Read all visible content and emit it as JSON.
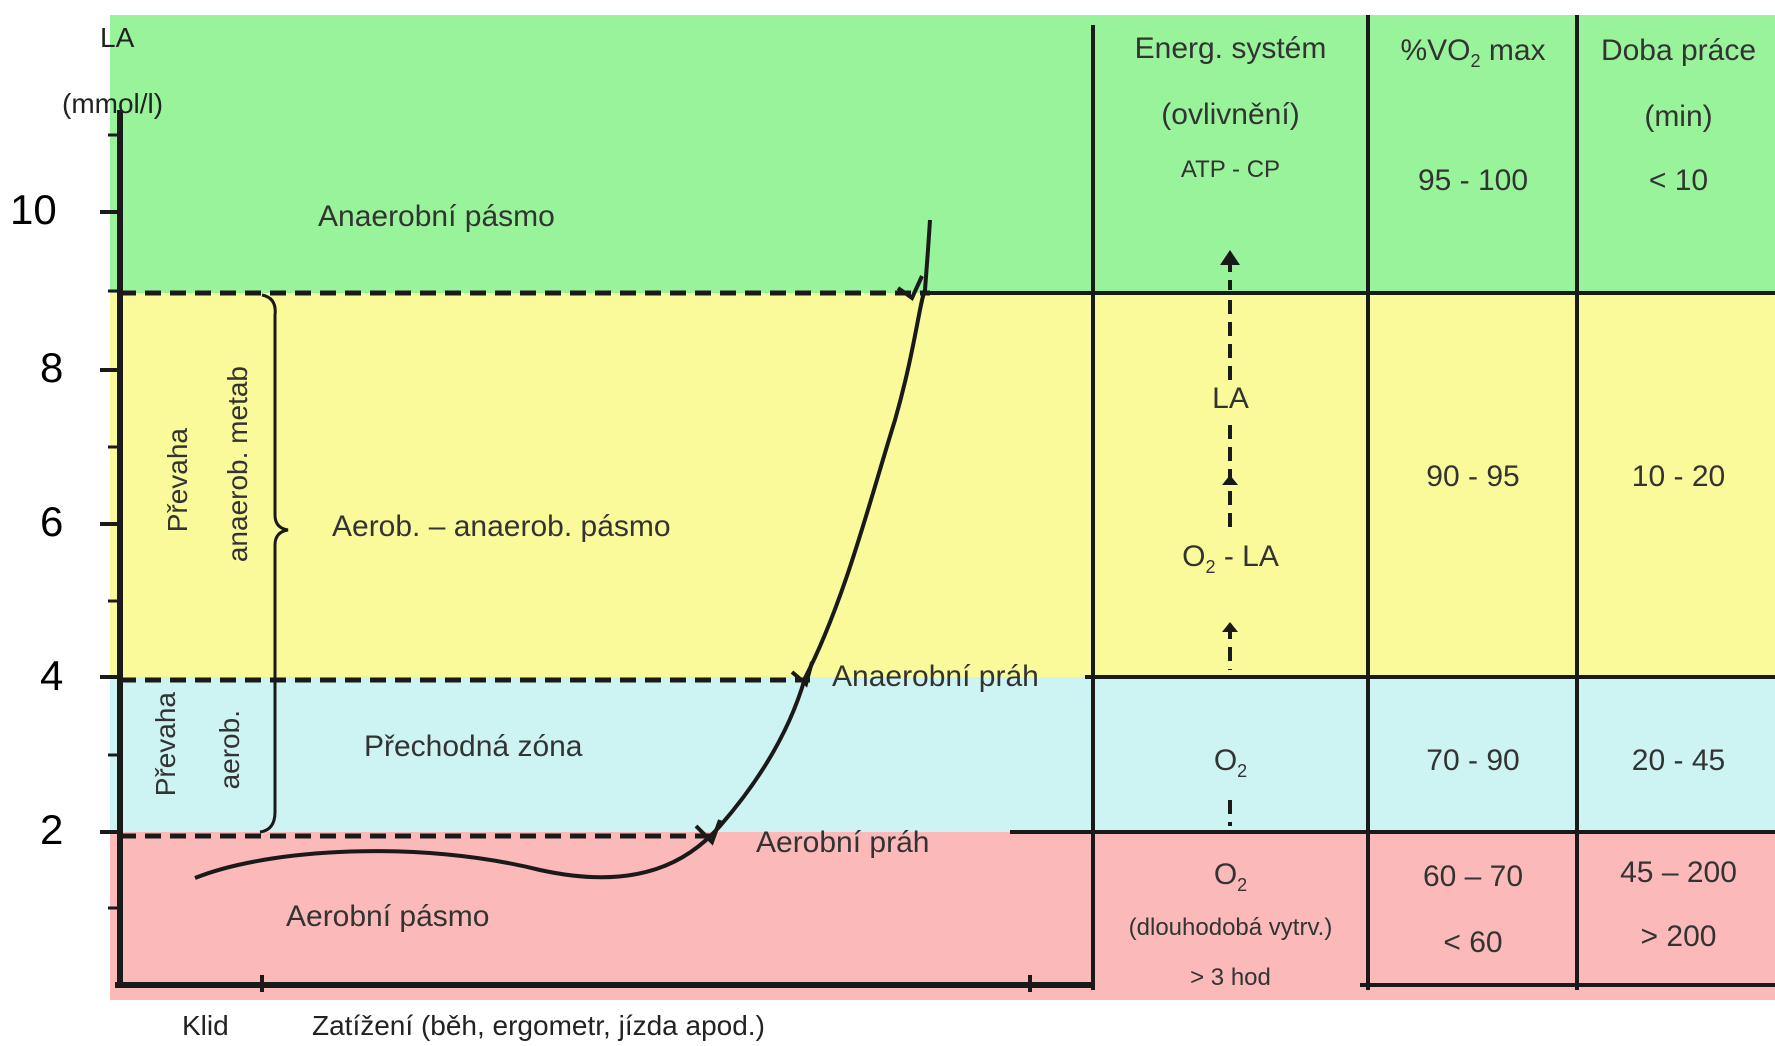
{
  "colors": {
    "green": "#99f39a",
    "yellow": "#fafa9a",
    "cyan": "#cdf3f3",
    "red": "#fbb9b9",
    "line": "#1a1a1a"
  },
  "y_axis": {
    "label": "LA",
    "unit": "(mmol/l)",
    "ticks": [
      "10",
      "8",
      "6",
      "4",
      "2"
    ]
  },
  "x_axis": {
    "start_label": "Klid",
    "label": "Zatížení (běh, ergometr,  jízda apod.)"
  },
  "zones": {
    "anaerobic": "Anaerobní pásmo",
    "aero_anaero": "Aerob. – anaerob. pásmo",
    "transition": "Přechodná zóna",
    "aerobic": "Aerobní pásmo"
  },
  "thresholds": {
    "anaerobic": "Anaerobní práh",
    "aerobic": "Aerobní práh"
  },
  "side_labels": {
    "anaerobic_metab_1": "Převaha",
    "anaerobic_metab_2": "anaerob. metab",
    "aerobic_1": "Převaha",
    "aerobic_2": "aerob."
  },
  "table": {
    "headers": {
      "energy_1": "Energ. systém",
      "energy_2": "(ovlivnění)",
      "vo2_prefix": "%VO",
      "vo2_sub": "2",
      "vo2_suffix": " max",
      "time_1": "Doba práce",
      "time_2": "(min)"
    },
    "energy": {
      "atp": "ATP - CP",
      "la": "LA",
      "o2la_prefix": "O",
      "o2la_sub": "2",
      "o2la_suffix": " - LA",
      "o2_cyan_prefix": "O",
      "o2_cyan_sub": "2",
      "o2_red_prefix": "O",
      "o2_red_sub": "2",
      "long_term": "(dlouhodobá vytrv.)",
      "hours": "> 3 hod"
    },
    "vo2": {
      "green": "95 - 100",
      "yellow": "90 - 95",
      "cyan": "70 - 90",
      "red_1": "60 – 70",
      "red_2": "< 60"
    },
    "time": {
      "green": "< 10",
      "yellow": "10 - 20",
      "cyan": "20 - 45",
      "red_1": "45 – 200",
      "red_2": "> 200"
    }
  }
}
